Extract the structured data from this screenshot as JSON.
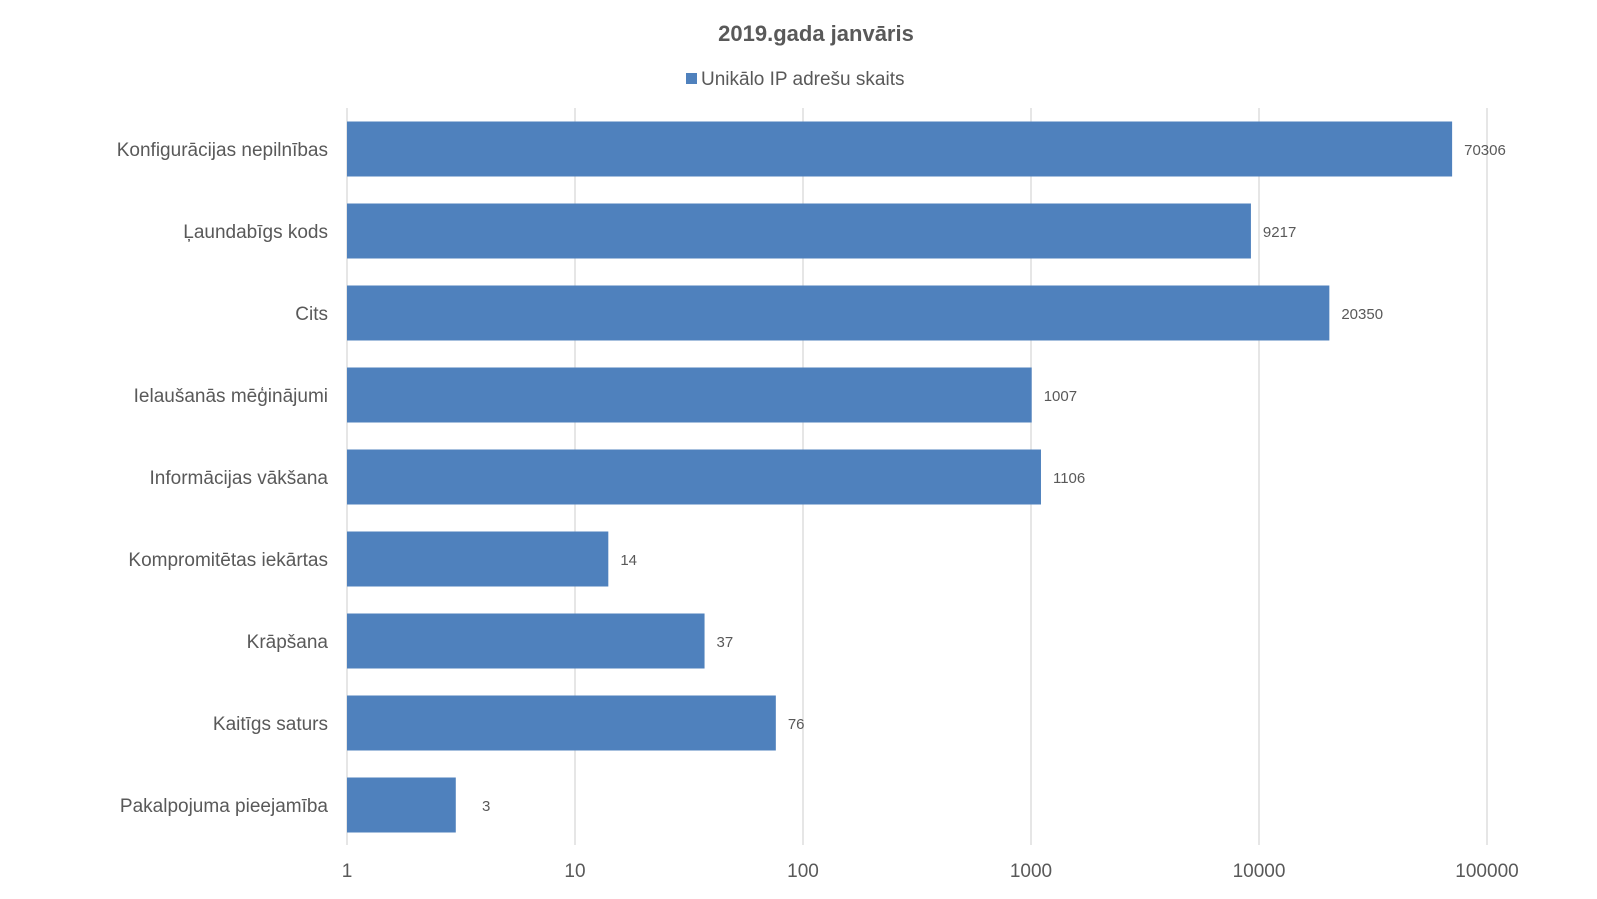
{
  "chart_data": {
    "type": "bar",
    "orientation": "horizontal",
    "title": "2019.gada janvāris",
    "xlabel": "",
    "ylabel": "",
    "x_scale": "log10",
    "xlim": [
      1,
      100000
    ],
    "x_ticks": [
      "1",
      "10",
      "100",
      "1000",
      "10000",
      "100000"
    ],
    "grid": "vertical gridlines on",
    "legend_position": "top",
    "categories": [
      "Konfigurācijas nepilnības",
      "Ļaundabīgs kods",
      "Cits",
      "Ielaušanās mēģinājumi",
      "Informācijas vākšana",
      "Kompromitētas iekārtas",
      "Krāpšana",
      "Kaitīgs saturs",
      "Pakalpojuma pieejamība"
    ],
    "series": [
      {
        "name": "Unikālo IP adrešu skaits",
        "color": "#4f81bd",
        "values": [
          70306,
          9217,
          20350,
          1007,
          1106,
          14,
          37,
          76,
          3
        ],
        "labels": [
          "70306",
          "9217",
          "20350",
          "1007",
          "1106",
          "14",
          "37",
          "76",
          "3"
        ]
      }
    ]
  }
}
